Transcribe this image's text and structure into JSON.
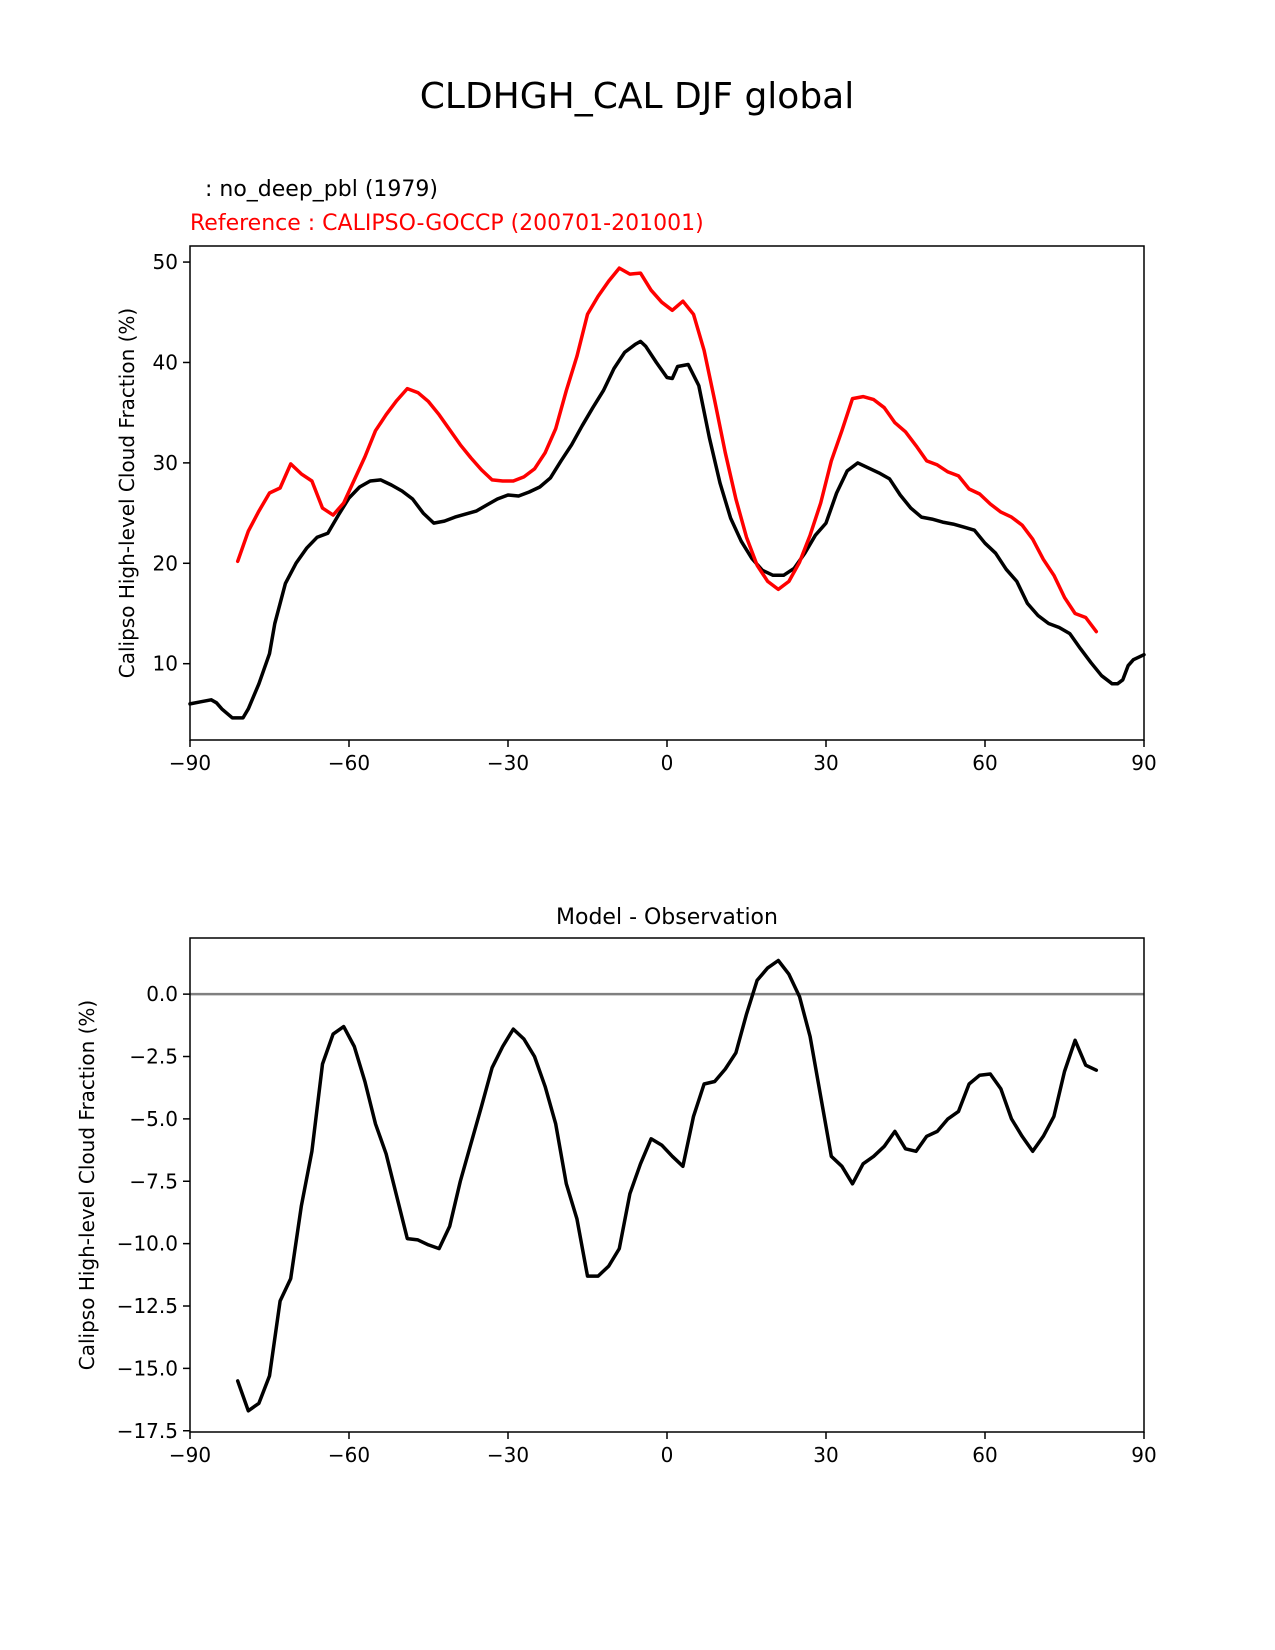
{
  "figure_title": "CLDHGH_CAL DJF global",
  "colors": {
    "model": "#000000",
    "reference": "#ff0000",
    "zero_line": "#808080",
    "axes": "#000000"
  },
  "chart_data": [
    {
      "type": "line",
      "title_test": ": no_deep_pbl (1979)",
      "title_reference": "Reference : CALIPSO-GOCCP (200701-201001)",
      "xlabel": "",
      "ylabel": "Calipso High-level Cloud Fraction (%)",
      "xlim": [
        -90,
        90
      ],
      "ylim": [
        2.4,
        51.6
      ],
      "xticks": [
        -90,
        -60,
        -30,
        0,
        30,
        60,
        90
      ],
      "xtick_labels": [
        "−90",
        "−60",
        "−30",
        "0",
        "30",
        "60",
        "90"
      ],
      "yticks": [
        10,
        20,
        30,
        40,
        50
      ],
      "ytick_labels": [
        "10",
        "20",
        "30",
        "40",
        "50"
      ],
      "series": [
        {
          "name": "no_deep_pbl (1979)",
          "color": "#000000",
          "x": [
            -90,
            -88,
            -86,
            -85,
            -84,
            -82,
            -80,
            -79,
            -77,
            -75,
            -74,
            -72,
            -70,
            -68,
            -66,
            -64,
            -62,
            -60,
            -58,
            -56,
            -54,
            -52,
            -50,
            -48,
            -46,
            -44,
            -42,
            -40,
            -38,
            -36,
            -34,
            -32,
            -30,
            -28,
            -26,
            -24,
            -22,
            -20,
            -18,
            -16,
            -14,
            -12,
            -10,
            -8,
            -6,
            -5,
            -4,
            -2,
            0,
            1,
            2,
            4,
            6,
            8,
            10,
            12,
            14,
            16,
            18,
            20,
            22,
            24,
            26,
            28,
            30,
            32,
            34,
            36,
            38,
            40,
            42,
            44,
            46,
            48,
            50,
            52,
            54,
            56,
            58,
            60,
            62,
            64,
            66,
            68,
            70,
            72,
            74,
            76,
            78,
            80,
            82,
            84,
            85,
            86,
            87,
            88,
            90
          ],
          "values": [
            6.0,
            6.2,
            6.4,
            6.1,
            5.5,
            4.6,
            4.6,
            5.5,
            8.0,
            11.0,
            14.0,
            18.0,
            20.0,
            21.5,
            22.6,
            23.0,
            24.8,
            26.5,
            27.6,
            28.2,
            28.3,
            27.8,
            27.2,
            26.4,
            25.0,
            24.0,
            24.2,
            24.6,
            24.9,
            25.2,
            25.8,
            26.4,
            26.8,
            26.7,
            27.1,
            27.6,
            28.5,
            30.2,
            31.8,
            33.7,
            35.5,
            37.2,
            39.4,
            41.0,
            41.8,
            42.1,
            41.6,
            40.0,
            38.5,
            38.4,
            39.6,
            39.8,
            37.7,
            32.5,
            28.0,
            24.5,
            22.2,
            20.5,
            19.3,
            18.8,
            18.8,
            19.5,
            21.0,
            22.8,
            24.0,
            27.0,
            29.2,
            30.0,
            29.5,
            29.0,
            28.4,
            26.8,
            25.5,
            24.6,
            24.4,
            24.1,
            23.9,
            23.6,
            23.3,
            22.0,
            21.0,
            19.4,
            18.2,
            16.0,
            14.8,
            14.0,
            13.6,
            13.0,
            11.5,
            10.1,
            8.8,
            8.0,
            8.0,
            8.4,
            9.8,
            10.4,
            10.9
          ]
        },
        {
          "name": "CALIPSO-GOCCP (200701-201001)",
          "color": "#ff0000",
          "x": [
            -81,
            -79,
            -77,
            -75,
            -73,
            -71,
            -69,
            -67,
            -65,
            -63,
            -61,
            -59,
            -57,
            -55,
            -53,
            -51,
            -49,
            -47,
            -45,
            -43,
            -41,
            -39,
            -37,
            -35,
            -33,
            -31,
            -29,
            -27,
            -25,
            -23,
            -21,
            -19,
            -17,
            -15,
            -13,
            -11,
            -9,
            -7,
            -5,
            -3,
            -1,
            1,
            3,
            5,
            7,
            9,
            11,
            13,
            15,
            17,
            19,
            21,
            23,
            25,
            27,
            29,
            31,
            33,
            35,
            37,
            39,
            41,
            43,
            45,
            47,
            49,
            51,
            53,
            55,
            57,
            59,
            61,
            63,
            65,
            67,
            69,
            71,
            73,
            75,
            77,
            79,
            81
          ],
          "values": [
            20.2,
            23.2,
            25.2,
            27.0,
            27.5,
            29.9,
            28.9,
            28.2,
            25.5,
            24.8,
            26.0,
            28.3,
            30.6,
            33.2,
            34.8,
            36.2,
            37.4,
            37.0,
            36.1,
            34.8,
            33.3,
            31.8,
            30.5,
            29.3,
            28.3,
            28.2,
            28.2,
            28.6,
            29.4,
            31.0,
            33.4,
            37.2,
            40.6,
            44.8,
            46.6,
            48.1,
            49.4,
            48.8,
            48.9,
            47.2,
            46.0,
            45.2,
            46.1,
            44.8,
            41.2,
            36.2,
            31.0,
            26.4,
            22.6,
            19.8,
            18.2,
            17.4,
            18.2,
            20.1,
            22.8,
            26.0,
            30.2,
            33.2,
            36.4,
            36.6,
            36.3,
            35.5,
            34.0,
            33.1,
            31.7,
            30.2,
            29.8,
            29.1,
            28.7,
            27.4,
            26.9,
            25.9,
            25.1,
            24.6,
            23.8,
            22.4,
            20.4,
            18.8,
            16.6,
            15.0,
            14.6,
            13.2
          ]
        }
      ]
    },
    {
      "type": "line",
      "title": "Model - Observation",
      "xlabel": "",
      "ylabel": "Calipso High-level Cloud Fraction (%)",
      "xlim": [
        -90,
        90
      ],
      "ylim": [
        -17.55,
        2.25
      ],
      "xticks": [
        -90,
        -60,
        -30,
        0,
        30,
        60,
        90
      ],
      "xtick_labels": [
        "−90",
        "−60",
        "−30",
        "0",
        "30",
        "60",
        "90"
      ],
      "yticks": [
        0.0,
        -2.5,
        -5.0,
        -7.5,
        -10.0,
        -12.5,
        -15.0,
        -17.5
      ],
      "ytick_labels": [
        "0.0",
        "−2.5",
        "−5.0",
        "−7.5",
        "−10.0",
        "−12.5",
        "−15.0",
        "−17.5"
      ],
      "zero_line": 0,
      "series": [
        {
          "name": "Model - Observation",
          "color": "#000000",
          "x": [
            -81,
            -79,
            -77,
            -75,
            -73,
            -71,
            -69,
            -67,
            -65,
            -63,
            -61,
            -59,
            -57,
            -55,
            -53,
            -51,
            -49,
            -47,
            -45,
            -43,
            -41,
            -39,
            -37,
            -35,
            -33,
            -31,
            -29,
            -27,
            -25,
            -23,
            -21,
            -19,
            -17,
            -15,
            -13,
            -11,
            -9,
            -7,
            -5,
            -3,
            -1,
            1,
            3,
            5,
            7,
            9,
            11,
            13,
            15,
            17,
            19,
            21,
            23,
            25,
            27,
            29,
            31,
            33,
            35,
            37,
            39,
            41,
            43,
            45,
            47,
            49,
            51,
            53,
            55,
            57,
            59,
            61,
            63,
            65,
            67,
            69,
            71,
            73,
            75,
            77,
            79,
            81
          ],
          "values": [
            -15.5,
            -16.7,
            -16.4,
            -15.3,
            -12.3,
            -11.4,
            -8.5,
            -6.3,
            -2.8,
            -1.6,
            -1.3,
            -2.1,
            -3.5,
            -5.2,
            -6.4,
            -8.1,
            -9.8,
            -9.85,
            -10.05,
            -10.2,
            -9.3,
            -7.5,
            -6.0,
            -4.5,
            -2.95,
            -2.1,
            -1.4,
            -1.8,
            -2.5,
            -3.7,
            -5.2,
            -7.6,
            -9.0,
            -11.3,
            -11.3,
            -10.9,
            -10.2,
            -8.0,
            -6.8,
            -5.8,
            -6.05,
            -6.5,
            -6.9,
            -4.9,
            -3.6,
            -3.5,
            -3.0,
            -2.35,
            -0.8,
            0.55,
            1.05,
            1.35,
            0.8,
            -0.1,
            -1.7,
            -4.1,
            -6.5,
            -6.9,
            -7.6,
            -6.8,
            -6.5,
            -6.1,
            -5.5,
            -6.2,
            -6.3,
            -5.7,
            -5.5,
            -5.0,
            -4.7,
            -3.6,
            -3.25,
            -3.2,
            -3.8,
            -5.0,
            -5.7,
            -6.3,
            -5.7,
            -4.9,
            -3.1,
            -1.85,
            -2.85,
            -3.05
          ]
        }
      ]
    }
  ]
}
